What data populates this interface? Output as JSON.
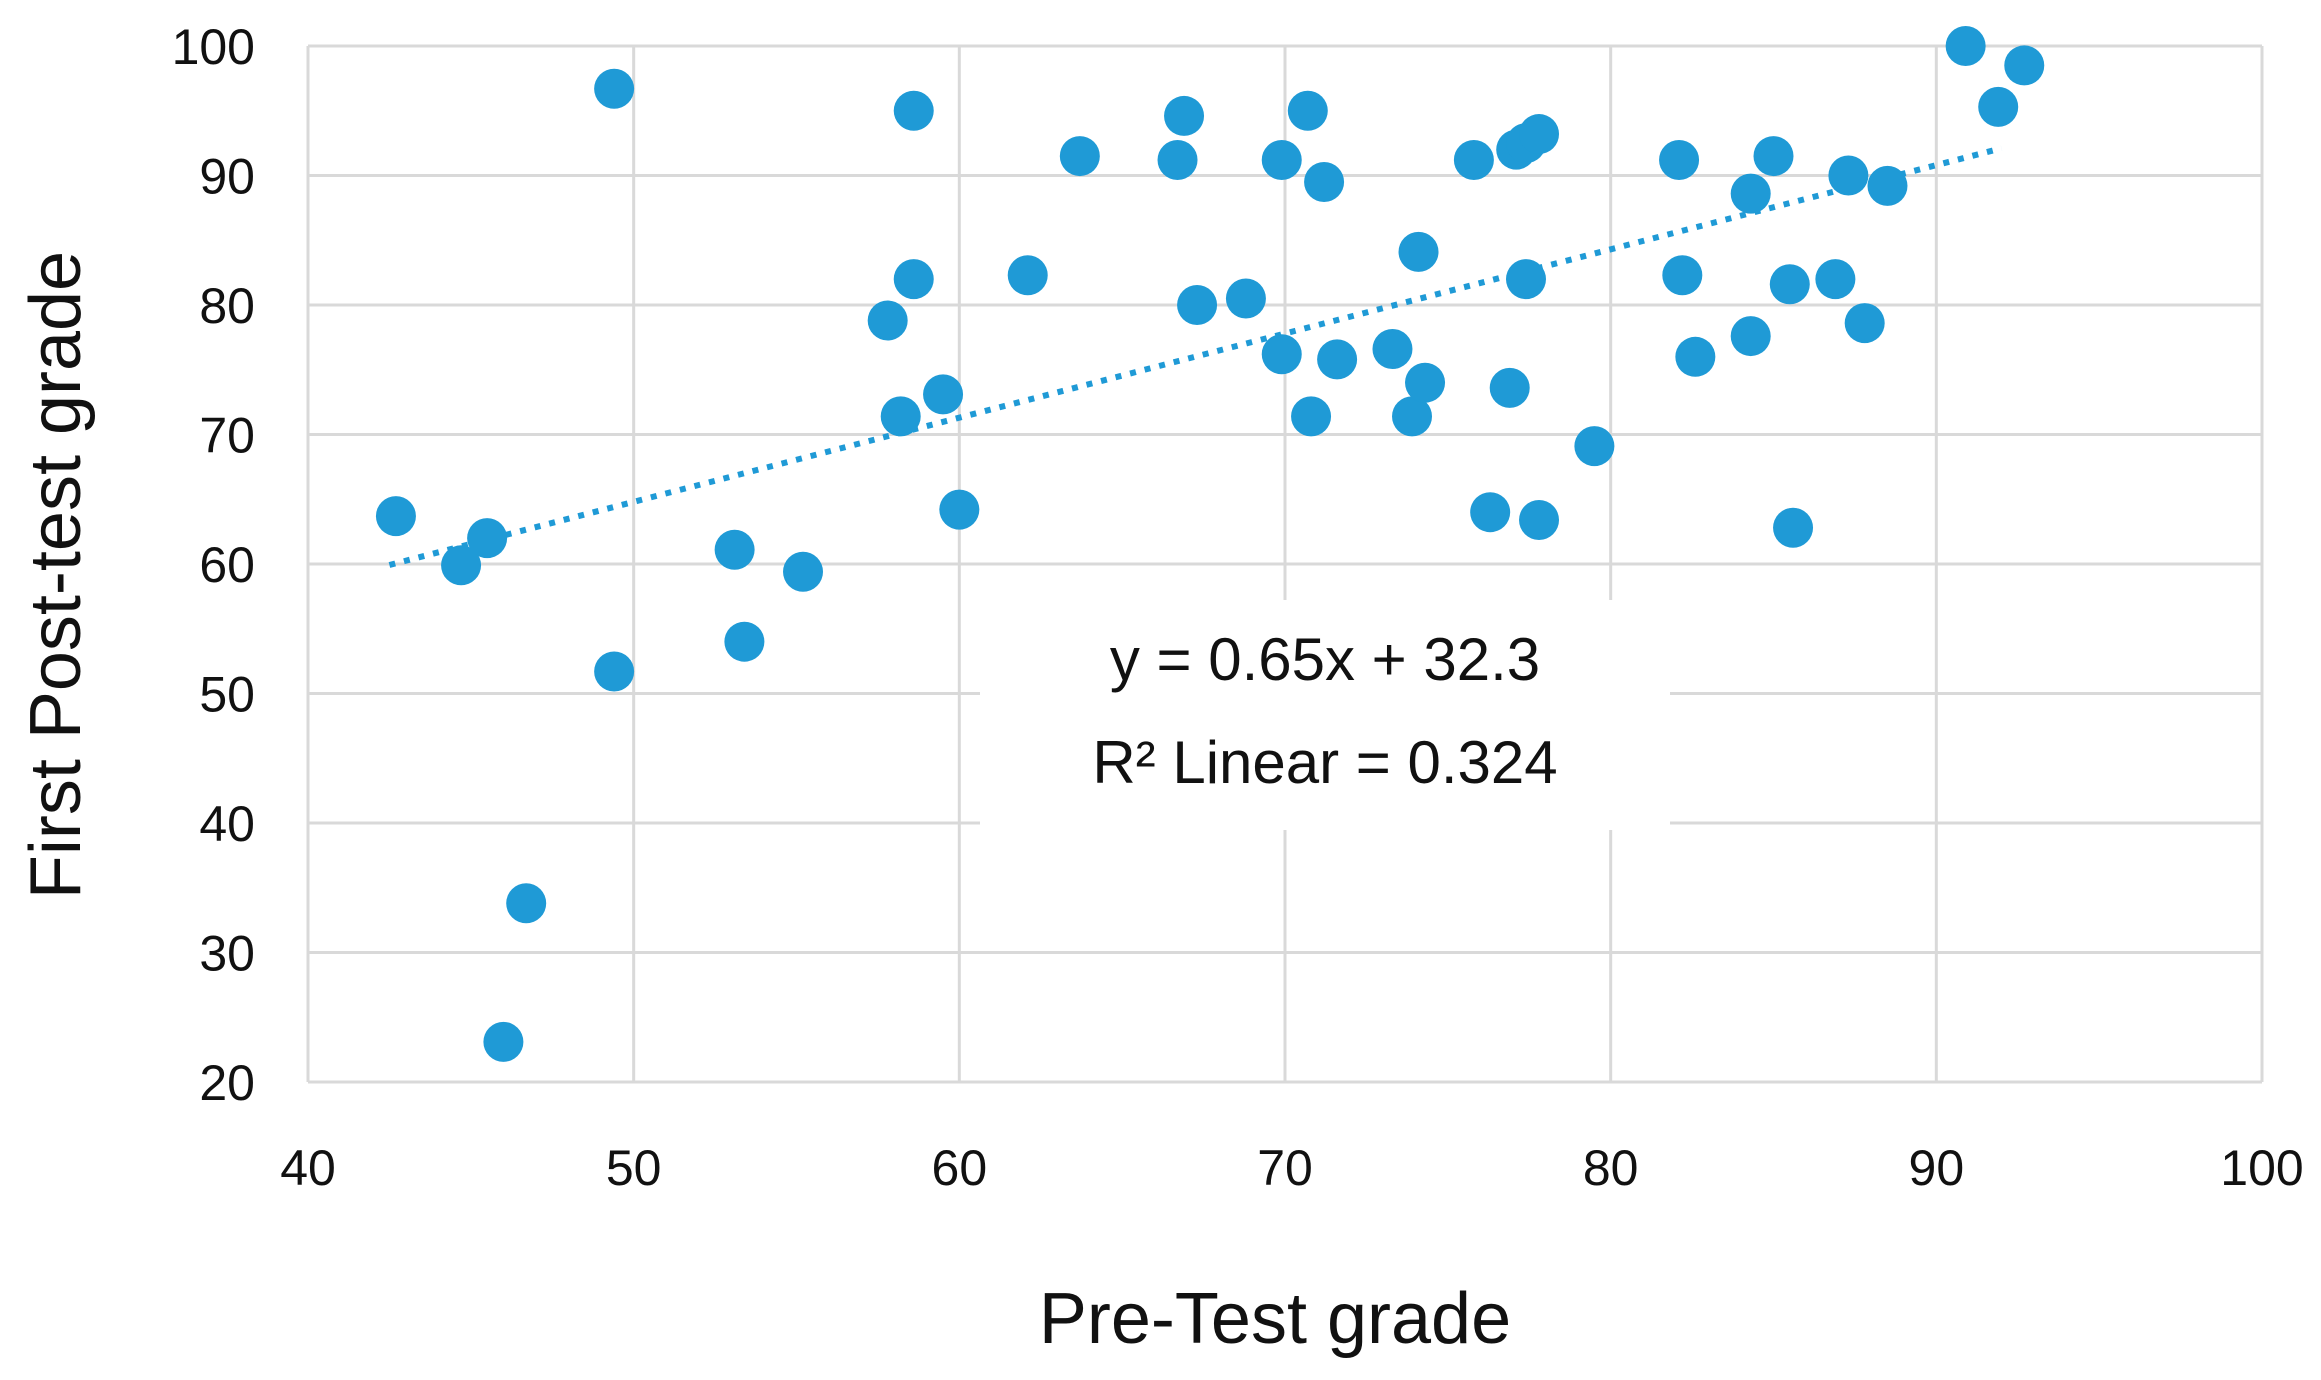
{
  "chart_data": {
    "type": "scatter",
    "title": "",
    "xlabel": "Pre-Test grade",
    "ylabel": "First Post-test grade",
    "xlim": [
      40,
      100
    ],
    "ylim": [
      20,
      100
    ],
    "x_ticks": [
      "40",
      "50",
      "60",
      "70",
      "80",
      "90",
      "100"
    ],
    "y_ticks": [
      "20",
      "30",
      "40",
      "50",
      "60",
      "70",
      "80",
      "90",
      "100"
    ],
    "grid": true,
    "legend": "none",
    "marker_color": "#1f9ad6",
    "trendline": {
      "type": "linear",
      "style": "dotted",
      "slope": 0.65,
      "intercept": 32.3,
      "x_range": [
        42.5,
        92
      ],
      "equation_label": "y = 0.65x + 32.3",
      "r2_label": "R² Linear = 0.324"
    },
    "points": [
      {
        "x": 42.7,
        "y": 63.7
      },
      {
        "x": 44.7,
        "y": 59.9
      },
      {
        "x": 45.5,
        "y": 62.0
      },
      {
        "x": 46.0,
        "y": 23.1
      },
      {
        "x": 46.7,
        "y": 33.8
      },
      {
        "x": 49.4,
        "y": 96.7
      },
      {
        "x": 49.4,
        "y": 51.7
      },
      {
        "x": 53.1,
        "y": 61.1
      },
      {
        "x": 53.4,
        "y": 54.0
      },
      {
        "x": 55.2,
        "y": 59.4
      },
      {
        "x": 57.8,
        "y": 78.8
      },
      {
        "x": 58.2,
        "y": 71.4
      },
      {
        "x": 58.6,
        "y": 95.0
      },
      {
        "x": 58.6,
        "y": 82.0
      },
      {
        "x": 59.5,
        "y": 73.1
      },
      {
        "x": 60.0,
        "y": 64.2
      },
      {
        "x": 62.1,
        "y": 82.3
      },
      {
        "x": 63.7,
        "y": 91.5
      },
      {
        "x": 66.7,
        "y": 91.2
      },
      {
        "x": 66.9,
        "y": 94.6
      },
      {
        "x": 67.3,
        "y": 80.0
      },
      {
        "x": 68.8,
        "y": 80.5
      },
      {
        "x": 69.9,
        "y": 91.2
      },
      {
        "x": 69.9,
        "y": 76.2
      },
      {
        "x": 70.7,
        "y": 95.0
      },
      {
        "x": 70.8,
        "y": 71.4
      },
      {
        "x": 71.2,
        "y": 89.5
      },
      {
        "x": 71.6,
        "y": 75.8
      },
      {
        "x": 73.3,
        "y": 76.6
      },
      {
        "x": 73.9,
        "y": 71.4
      },
      {
        "x": 74.1,
        "y": 84.1
      },
      {
        "x": 74.3,
        "y": 74.0
      },
      {
        "x": 75.8,
        "y": 91.2
      },
      {
        "x": 76.3,
        "y": 64.0
      },
      {
        "x": 76.9,
        "y": 73.6
      },
      {
        "x": 77.1,
        "y": 92.0
      },
      {
        "x": 77.4,
        "y": 92.5
      },
      {
        "x": 77.4,
        "y": 82.0
      },
      {
        "x": 77.8,
        "y": 93.2
      },
      {
        "x": 77.8,
        "y": 63.4
      },
      {
        "x": 79.5,
        "y": 69.1
      },
      {
        "x": 82.1,
        "y": 91.2
      },
      {
        "x": 82.2,
        "y": 82.3
      },
      {
        "x": 82.6,
        "y": 76.0
      },
      {
        "x": 84.3,
        "y": 88.6
      },
      {
        "x": 84.3,
        "y": 77.6
      },
      {
        "x": 85.0,
        "y": 91.5
      },
      {
        "x": 85.5,
        "y": 81.6
      },
      {
        "x": 85.6,
        "y": 62.8
      },
      {
        "x": 86.9,
        "y": 82.0
      },
      {
        "x": 87.3,
        "y": 90.0
      },
      {
        "x": 87.8,
        "y": 78.6
      },
      {
        "x": 88.5,
        "y": 89.2
      },
      {
        "x": 90.9,
        "y": 100.0
      },
      {
        "x": 91.9,
        "y": 95.3
      },
      {
        "x": 92.7,
        "y": 98.5
      }
    ]
  }
}
